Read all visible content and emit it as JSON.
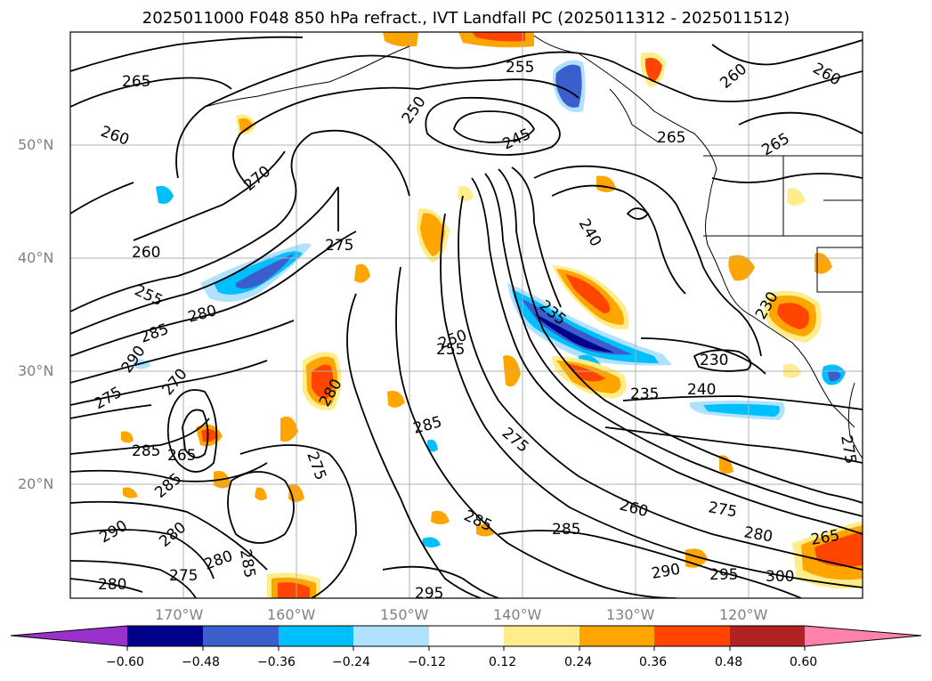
{
  "title": "2025011000 F048 850 hPa refract., IVT Landfall PC (2025011312 - 2025011512)",
  "lat_labels": [
    "50°N",
    "40°N",
    "30°N",
    "20°N"
  ],
  "lon_labels": [
    "170°W",
    "160°W",
    "150°W",
    "140°W",
    "130°W",
    "120°W"
  ],
  "colorbar": {
    "ticks": [
      "−0.60",
      "−0.48",
      "−0.36",
      "−0.24",
      "−0.12",
      "0.12",
      "0.24",
      "0.36",
      "0.48",
      "0.60"
    ],
    "colors": [
      "#9932cc",
      "#00008b",
      "#3a5fcd",
      "#00bfff",
      "#b0e2ff",
      "#ffffff",
      "#ffec8b",
      "#ffa500",
      "#ff4500",
      "#b22222",
      "#ff82ab"
    ]
  },
  "contour_labels": [
    {
      "text": "265"
    },
    {
      "text": "260"
    },
    {
      "text": "255"
    },
    {
      "text": "250"
    },
    {
      "text": "245"
    },
    {
      "text": "265"
    },
    {
      "text": "260"
    },
    {
      "text": "260"
    },
    {
      "text": "265"
    },
    {
      "text": "270"
    },
    {
      "text": "275"
    },
    {
      "text": "240"
    },
    {
      "text": "260"
    },
    {
      "text": "255"
    },
    {
      "text": "280"
    },
    {
      "text": "285"
    },
    {
      "text": "290"
    },
    {
      "text": "235"
    },
    {
      "text": "250"
    },
    {
      "text": "255"
    },
    {
      "text": "230"
    },
    {
      "text": "235"
    },
    {
      "text": "240"
    },
    {
      "text": "270"
    },
    {
      "text": "275"
    },
    {
      "text": "280"
    },
    {
      "text": "285"
    },
    {
      "text": "275"
    },
    {
      "text": "275"
    },
    {
      "text": "285"
    },
    {
      "text": "265"
    },
    {
      "text": "285"
    },
    {
      "text": "280"
    },
    {
      "text": "285"
    },
    {
      "text": "260"
    },
    {
      "text": "275"
    },
    {
      "text": "280"
    },
    {
      "text": "285"
    },
    {
      "text": "290"
    },
    {
      "text": "295"
    },
    {
      "text": "300"
    },
    {
      "text": "265"
    },
    {
      "text": "280"
    },
    {
      "text": "275"
    },
    {
      "text": "295"
    },
    {
      "text": "285"
    },
    {
      "text": "290"
    },
    {
      "text": "280"
    },
    {
      "text": "275"
    },
    {
      "text": "230"
    }
  ]
}
